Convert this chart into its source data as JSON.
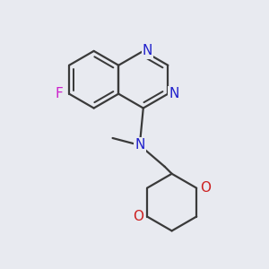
{
  "background_color": "#e8eaf0",
  "bond_color": "#3a3a3a",
  "N_color": "#2020cc",
  "O_color": "#cc2020",
  "F_color": "#cc20cc",
  "line_width": 1.6,
  "font_size_atom": 11,
  "fig_size": [
    3.0,
    3.0
  ],
  "dpi": 100,
  "xlim": [
    -1.5,
    1.8
  ],
  "ylim": [
    -2.2,
    1.5
  ]
}
